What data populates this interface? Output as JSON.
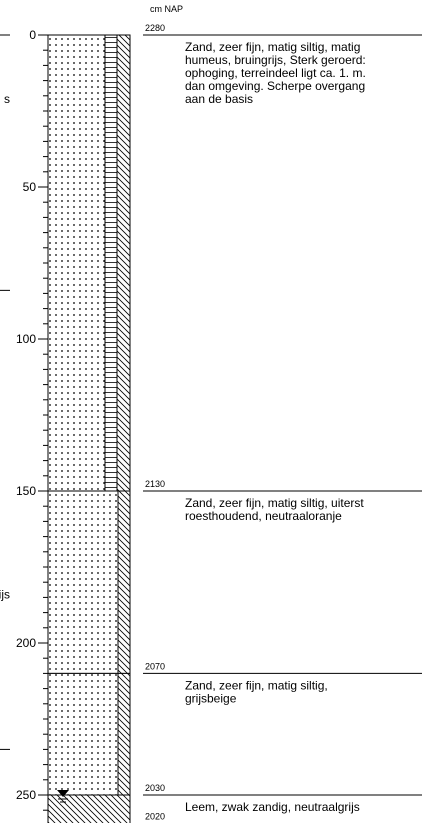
{
  "unit_label": "cm NAP",
  "cut_texts": [
    {
      "text": "s",
      "depth": 21
    },
    {
      "text": "ijs",
      "depth": 184
    }
  ],
  "depth_axis": {
    "ticks": [
      0,
      50,
      100,
      150,
      200,
      250
    ],
    "max": 260
  },
  "layers": [
    {
      "top": 0,
      "bottom": 150,
      "nap_top": "2280",
      "description": [
        "Zand, zeer fijn, matig siltig, matig",
        "humeus, bruingrijs, Sterk geroerd:",
        "ophoging, terreindeel ligt ca. 1. m.",
        "dan omgeving. Scherpe overgang",
        "aan de basis"
      ]
    },
    {
      "top": 150,
      "bottom": 210,
      "nap_top": "2130",
      "description": [
        "Zand, zeer fijn, matig siltig, uiterst",
        "roesthoudend, neutraaloranje"
      ]
    },
    {
      "top": 210,
      "bottom": 250,
      "nap_top": "2070",
      "description": [
        "Zand, zeer fijn, matig siltig,",
        "grijsbeige"
      ]
    },
    {
      "top": 250,
      "bottom": 260,
      "nap_top": "2030",
      "description": [
        "Leem, zwak zandig, neutraalgrijs"
      ]
    }
  ],
  "nap_bottom": "2020"
}
